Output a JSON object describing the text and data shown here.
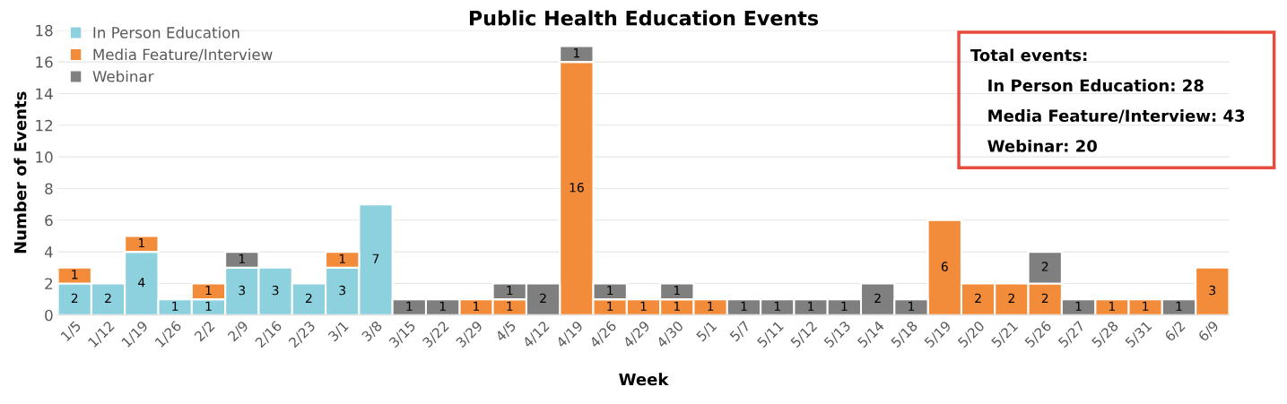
{
  "chart_data": {
    "type": "bar",
    "title": "Public Health Education Events",
    "xlabel": "Week",
    "ylabel": "Number of Events",
    "categories": [
      "1/5",
      "1/12",
      "1/19",
      "1/26",
      "2/2",
      "2/9",
      "2/16",
      "2/23",
      "3/1",
      "3/8",
      "3/15",
      "3/22",
      "3/29",
      "4/5",
      "4/12",
      "4/19",
      "4/26",
      "4/29",
      "4/30",
      "5/1",
      "5/7",
      "5/11",
      "5/12",
      "5/13",
      "5/14",
      "5/18",
      "5/19",
      "5/20",
      "5/21",
      "5/26",
      "5/27",
      "5/28",
      "5/31",
      "6/2",
      "6/9"
    ],
    "series": [
      {
        "name": "In Person Education",
        "color": "#8ed1de",
        "values": [
          2,
          2,
          4,
          1,
          1,
          3,
          3,
          2,
          3,
          7,
          null,
          null,
          null,
          null,
          null,
          null,
          null,
          null,
          null,
          null,
          null,
          null,
          null,
          null,
          null,
          null,
          null,
          null,
          null,
          null,
          null,
          null,
          null,
          null,
          null
        ]
      },
      {
        "name": "Media Feature/Interview",
        "color": "#f28c3a",
        "values": [
          1,
          null,
          1,
          null,
          1,
          null,
          null,
          null,
          1,
          null,
          null,
          null,
          1,
          1,
          null,
          16,
          1,
          1,
          1,
          1,
          null,
          null,
          null,
          null,
          null,
          null,
          6,
          2,
          2,
          2,
          null,
          1,
          1,
          null,
          3
        ]
      },
      {
        "name": "Webinar",
        "color": "#7f7f7f",
        "values": [
          null,
          null,
          null,
          null,
          null,
          1,
          null,
          null,
          null,
          null,
          1,
          1,
          null,
          1,
          2,
          1,
          1,
          null,
          1,
          null,
          1,
          1,
          1,
          1,
          2,
          1,
          null,
          null,
          null,
          2,
          1,
          null,
          null,
          1,
          null
        ]
      }
    ],
    "stacked": true,
    "data_labels": true,
    "ylim": [
      0,
      18
    ],
    "yticks": [
      0,
      2,
      4,
      6,
      8,
      10,
      12,
      14,
      16,
      18
    ],
    "grid": "y",
    "legend": "top left",
    "annotations": [
      "Total events:",
      "In Person Education: 28",
      "Media Feature/Interview: 43",
      "Webinar: 20"
    ]
  }
}
